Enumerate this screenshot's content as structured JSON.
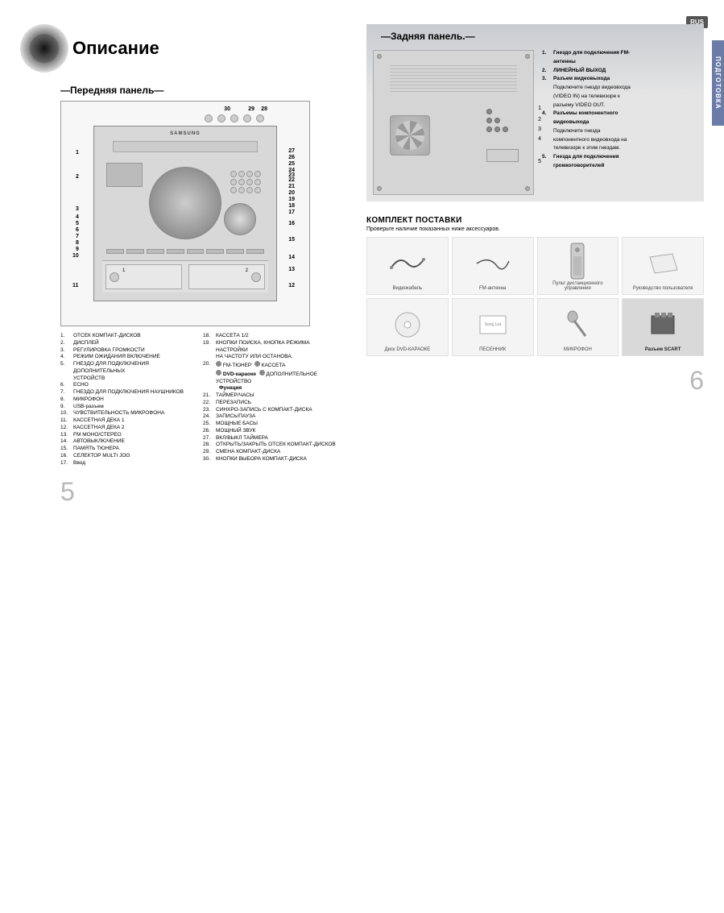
{
  "left": {
    "title": "Описание",
    "subtitle_prefix": "—",
    "subtitle": "Передняя панель",
    "subtitle_suffix": "—",
    "brand": "SAMSUNG",
    "top_nums": [
      "30",
      "29",
      "28"
    ],
    "left_nums": [
      "1",
      "2",
      "3",
      "4",
      "5",
      "6",
      "7",
      "8",
      "9",
      "10",
      "11"
    ],
    "right_nums": [
      "27",
      "26",
      "25",
      "24",
      "23",
      "22",
      "21",
      "20",
      "19",
      "18",
      "17",
      "16",
      "15",
      "14",
      "13",
      "12"
    ],
    "tape_left": "1",
    "tape_right": "2",
    "legend_col1": [
      {
        "n": "1.",
        "t": "ОТСЕК КОМПАКТ-ДИСКОВ"
      },
      {
        "n": "2.",
        "t": "ДИСПЛЕЙ"
      },
      {
        "n": "3.",
        "t": "РЕГУЛИРОВКА ГРОМКОСТИ"
      },
      {
        "n": "4.",
        "t": "РЕЖИМ ОЖИДАНИЯ ВКЛЮЧЕНИЕ"
      },
      {
        "n": "5.",
        "t": "ГНЕЗДО ДЛЯ ПОДКЛЮЧЕНИЯ ДОПОЛНИТЕЛЬНЫХ"
      },
      {
        "n": "",
        "t": "УСТРОЙСТВ"
      },
      {
        "n": "6.",
        "t": "ECHO"
      },
      {
        "n": "7.",
        "t": "ГНЕЗДО ДЛЯ ПОДКЛЮЧЕНИЯ НАУШНИКОВ"
      },
      {
        "n": "8.",
        "t": "МИКРОФОН"
      },
      {
        "n": "9.",
        "t": "USB-разъем"
      },
      {
        "n": "10.",
        "t": "ЧУВСТВИТЕЛЬНОСТЬ МИКРОФОНА"
      },
      {
        "n": "11.",
        "t": "КАССЕТНАЯ ДЕКА 1"
      },
      {
        "n": "12.",
        "t": "КАССЕТНАЯ ДЕКА 2"
      },
      {
        "n": "13.",
        "t": "FM МОНО/СТЕРЕО"
      },
      {
        "n": "14.",
        "t": "АВТОВЫКЛЮЧЕНИЕ"
      },
      {
        "n": "15.",
        "t": "ПАМЯТЬ ТЮНЕРА"
      },
      {
        "n": "16.",
        "t": "СЕЛЕКТОР MULTI JOG"
      },
      {
        "n": "17.",
        "t": "Ввод"
      }
    ],
    "legend_col2": [
      {
        "n": "18.",
        "t": "КАССЕТА 1/2"
      },
      {
        "n": "19.",
        "t": "КНОПКИ ПОИСКА, КНОПКА РЕЖИМА НАСТРОЙКИ"
      },
      {
        "n": "",
        "t": "НА ЧАСТОТУ ИЛИ ОСТАНОВА."
      },
      {
        "n": "20.",
        "t": "_func1_"
      },
      {
        "n": "",
        "t": "_func2_"
      },
      {
        "n": "21.",
        "t": "ТАЙМЕР/ЧАСЫ"
      },
      {
        "n": "22.",
        "t": "ПЕРЕЗАПИСЬ"
      },
      {
        "n": "23.",
        "t": "СИНХРО-ЗАПИСЬ С КОМПАКТ-ДИСКА"
      },
      {
        "n": "24.",
        "t": "ЗАПИСЬ/ПАУЗА"
      },
      {
        "n": "25.",
        "t": "МОЩНЫЕ БАСЫ"
      },
      {
        "n": "26.",
        "t": "МОЩНЫЙ ЗВУК"
      },
      {
        "n": "27.",
        "t": "ВКЛ/ВЫКЛ ТАЙМЕРА"
      },
      {
        "n": "28.",
        "t": "ОТКРЫТЬ/ЗАКРЫТЬ ОТСЕК КОМПАКТ-ДИСКОВ"
      },
      {
        "n": "29.",
        "t": "СМЕНА КОМПАКТ-ДИСКА"
      },
      {
        "n": "30.",
        "t": "КНОПКИ ВЫБОРА КОМПАКТ-ДИСКА"
      }
    ],
    "func_row1": {
      "a": "FM-ТЮНЕР",
      "b": "КАССЕТА"
    },
    "func_row2": {
      "a": "DVD-караоке",
      "b": "ДОПОЛНИТЕЛЬНОЕ УСТРОЙСТВО",
      "c": "Функция"
    },
    "page_num": "5"
  },
  "right": {
    "badge": "RUS",
    "side_tab": "ПОДГОТОВКА",
    "title_prefix": "—",
    "title": "Задняя панель.",
    "title_suffix": "—",
    "callouts": [
      "1",
      "2",
      "3",
      "4",
      "5"
    ],
    "legend": [
      {
        "n": "1.",
        "t": "Гнездо для подключения FM-",
        "b": true
      },
      {
        "n": "",
        "t": "антенны",
        "b": true
      },
      {
        "n": "2.",
        "t": "ЛИНЕЙНЫЙ ВЫХОД",
        "b": true
      },
      {
        "n": "3.",
        "t": "Разъем видеовыхода",
        "b": true
      },
      {
        "n": "",
        "t": "Подключите гнездо видеовхода",
        "b": false
      },
      {
        "n": "",
        "t": "(VIDEO IN) на телевизоре к",
        "b": false
      },
      {
        "n": "",
        "t": "разъему VIDEO OUT.",
        "b": false
      },
      {
        "n": "4.",
        "t": "Разъемы компонентного",
        "b": true
      },
      {
        "n": "",
        "t": "видеовыхода",
        "b": true
      },
      {
        "n": "",
        "t": "Подключите гнезда",
        "b": false
      },
      {
        "n": "",
        "t": "компонентного видеовхода на",
        "b": false
      },
      {
        "n": "",
        "t": "телевизоре к этим гнездам.",
        "b": false
      },
      {
        "n": "5.",
        "t": "Гнезда для подключения",
        "b": true
      },
      {
        "n": "",
        "t": "громкоговорителей",
        "b": true
      }
    ],
    "acc_title": "КОМПЛЕКТ ПОСТАВКИ",
    "acc_sub": "Проверьте наличие показанных ниже аксессуаров.",
    "acc": [
      {
        "label": "Видеокабель",
        "icon": "cable1"
      },
      {
        "label": "FM-антенна",
        "icon": "cable2"
      },
      {
        "label": "Пульт дистанционного\nуправления",
        "icon": "remote"
      },
      {
        "label": "Руководство пользователя",
        "icon": "manual"
      },
      {
        "label": "Диск DVD-КАРАОКЕ",
        "icon": "disc"
      },
      {
        "label": "ПЕСЕННИК",
        "icon": "book"
      },
      {
        "label": "МИКРОФОН",
        "icon": "mic"
      },
      {
        "label": "Разъем SCART",
        "icon": "scart",
        "dark": true
      }
    ],
    "page_num": "6"
  }
}
